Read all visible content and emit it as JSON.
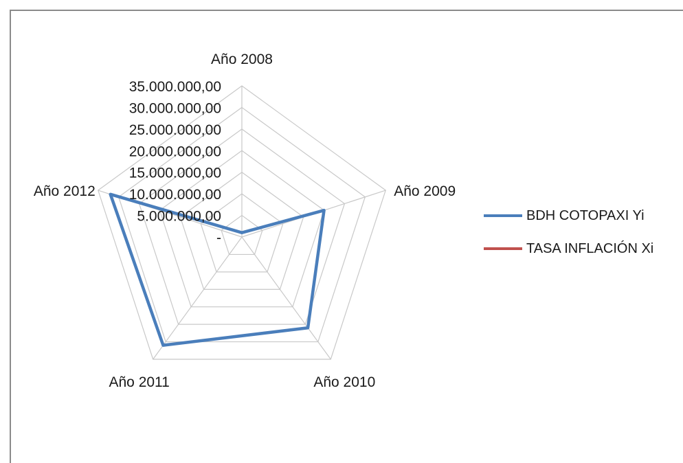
{
  "chart_data": {
    "type": "radar",
    "categories": [
      "Año 2008",
      "Año 2009",
      "Año 2010",
      "Año 2011",
      "Año 2012"
    ],
    "series": [
      {
        "name": "BDH COTOPAXI Yi",
        "color": "#4a7ebb",
        "values": [
          1000000,
          20000000,
          26000000,
          31000000,
          32000000
        ]
      },
      {
        "name": "TASA INFLACIÓN Xi",
        "color": "#c0504d",
        "values": [
          0.08,
          0.05,
          0.03,
          0.05,
          0.04
        ]
      }
    ],
    "ylim": [
      0,
      35000000
    ],
    "tick_values": [
      0,
      5000000,
      10000000,
      15000000,
      20000000,
      25000000,
      30000000,
      35000000
    ],
    "tick_labels": [
      "-",
      "5.000.000,00",
      "10.000.000,00",
      "15.000.000,00",
      "20.000.000,00",
      "25.000.000,00",
      "30.000.000,00",
      "35.000.000,00"
    ],
    "grid": true,
    "grid_color": "#c8c8c8",
    "legend_position": "right"
  }
}
